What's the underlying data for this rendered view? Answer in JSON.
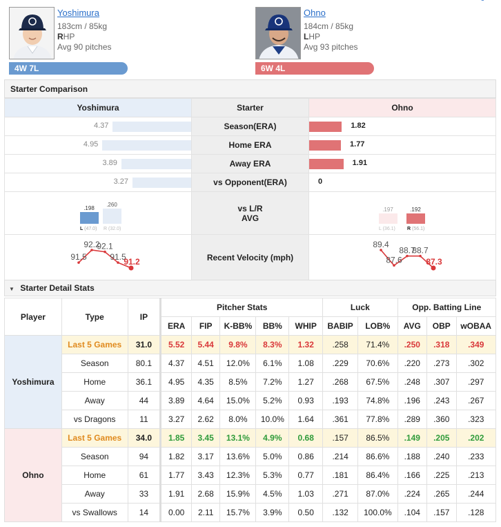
{
  "away": {
    "name": "Yoshimura",
    "height_weight": "183cm / 85kg",
    "hand_letter": "R",
    "hand_rest": "HP",
    "avg_pitches": "Avg 90 pitches",
    "record": "4W 7L",
    "color": "#6a9ad0"
  },
  "home": {
    "name": "Ohno",
    "height_weight": "184cm / 85kg",
    "hand_letter": "L",
    "hand_rest": "HP",
    "avg_pitches": "Avg 93 pitches",
    "record": "6W 4L",
    "color": "#e07375"
  },
  "comparison": {
    "section_title": "Starter Comparison",
    "header_left": "Yoshimura",
    "header_mid": "Starter",
    "header_right": "Ohno",
    "rows": [
      {
        "label": "Season(ERA)",
        "left": "4.37",
        "right": "1.82",
        "left_val": 4.37,
        "right_val": 1.82
      },
      {
        "label": "Home ERA",
        "left": "4.95",
        "right": "1.77",
        "left_val": 4.95,
        "right_val": 1.77
      },
      {
        "label": "Away ERA",
        "left": "3.89",
        "right": "1.91",
        "left_val": 3.89,
        "right_val": 1.91
      },
      {
        "label": "vs Opponent(ERA)",
        "left": "3.27",
        "right": "0",
        "left_val": 3.27,
        "right_val": 0
      }
    ],
    "lr": {
      "label_line1": "vs L/R",
      "label_line2": "AVG",
      "left": {
        "l_avg": ".198",
        "r_avg": ".260",
        "l_tag": "L",
        "l_ip": "(47.0)",
        "r_tag": "R",
        "r_ip": "(32.0)"
      },
      "right": {
        "l_avg": ".197",
        "r_avg": ".192",
        "l_tag": "L",
        "l_ip": "(36.1)",
        "r_tag": "R",
        "r_ip": "(56.1)"
      }
    },
    "velocity": {
      "label": "Recent Velocity (mph)",
      "left": [
        "91.5",
        "92.2",
        "92.1",
        "91.5",
        "91.2"
      ],
      "right": [
        "89.4",
        "87.6",
        "88.7",
        "88.7",
        "87.3"
      ]
    }
  },
  "detail": {
    "section_title": "Starter Detail Stats",
    "h_player": "Player",
    "h_type": "Type",
    "h_ip": "IP",
    "h_pitcher": "Pitcher Stats",
    "h_luck": "Luck",
    "h_opp": "Opp. Batting Line",
    "cols": [
      "ERA",
      "FIP",
      "K-BB%",
      "BB%",
      "WHIP",
      "BABIP",
      "LOB%",
      "AVG",
      "OBP",
      "wOBAA"
    ],
    "away_player": "Yoshimura",
    "home_player": "Ohno",
    "away_rows": [
      [
        "Last 5 Games",
        "31.0",
        "5.52",
        "5.44",
        "9.8%",
        "8.3%",
        "1.32",
        ".258",
        "71.4%",
        ".250",
        ".318",
        ".349"
      ],
      [
        "Season",
        "80.1",
        "4.37",
        "4.51",
        "12.0%",
        "6.1%",
        "1.08",
        ".229",
        "70.6%",
        ".220",
        ".273",
        ".302"
      ],
      [
        "Home",
        "36.1",
        "4.95",
        "4.35",
        "8.5%",
        "7.2%",
        "1.27",
        ".268",
        "67.5%",
        ".248",
        ".307",
        ".297"
      ],
      [
        "Away",
        "44",
        "3.89",
        "4.64",
        "15.0%",
        "5.2%",
        "0.93",
        ".193",
        "74.8%",
        ".196",
        ".243",
        ".267"
      ],
      [
        "vs Dragons",
        "11",
        "3.27",
        "2.62",
        "8.0%",
        "10.0%",
        "1.64",
        ".361",
        "77.8%",
        ".289",
        ".360",
        ".323"
      ]
    ],
    "home_rows": [
      [
        "Last 5 Games",
        "34.0",
        "1.85",
        "3.45",
        "13.1%",
        "4.9%",
        "0.68",
        ".157",
        "86.5%",
        ".149",
        ".205",
        ".202"
      ],
      [
        "Season",
        "94",
        "1.82",
        "3.17",
        "13.6%",
        "5.0%",
        "0.86",
        ".214",
        "86.6%",
        ".188",
        ".240",
        ".233"
      ],
      [
        "Home",
        "61",
        "1.77",
        "3.43",
        "12.3%",
        "5.3%",
        "0.77",
        ".181",
        "86.4%",
        ".166",
        ".225",
        ".213"
      ],
      [
        "Away",
        "33",
        "1.91",
        "2.68",
        "15.9%",
        "4.5%",
        "1.03",
        ".271",
        "87.0%",
        ".224",
        ".265",
        ".244"
      ],
      [
        "vs Swallows",
        "14",
        "0.00",
        "2.11",
        "15.7%",
        "3.9%",
        "0.50",
        ".132",
        "100.0%",
        ".104",
        ".157",
        ".128"
      ]
    ]
  }
}
